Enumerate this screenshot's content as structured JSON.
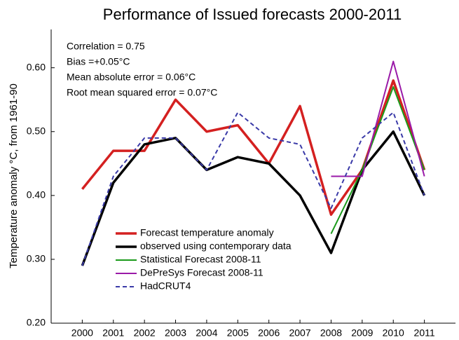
{
  "chart_data": {
    "type": "line",
    "title": "Performance of Issued forecasts 2000-2011",
    "y_label": "Temperature anomaly °C, from 1961-90",
    "annotations": [
      "Correlation = 0.75",
      "Bias =+0.05°C",
      "Mean absolute error = 0.06°C",
      "Root mean squared error = 0.07°C"
    ],
    "x": [
      2000,
      2001,
      2002,
      2003,
      2004,
      2005,
      2006,
      2007,
      2008,
      2009,
      2010,
      2011
    ],
    "xlim": [
      1999,
      2012
    ],
    "xticks": [
      2000,
      2001,
      2002,
      2003,
      2004,
      2005,
      2006,
      2007,
      2008,
      2009,
      2010,
      2011
    ],
    "ylim": [
      0.2,
      0.66
    ],
    "yticks": [
      {
        "value": 0.2,
        "label": "0.20"
      },
      {
        "value": 0.3,
        "label": "0.30"
      },
      {
        "value": 0.4,
        "label": "0.40"
      },
      {
        "value": 0.5,
        "label": "0.50"
      },
      {
        "value": 0.6,
        "label": "0.60"
      }
    ],
    "grid": false,
    "legend": "lower left",
    "series": [
      {
        "name": "Forecast temperature anomaly",
        "color": "#d42020",
        "linewidth": 3.5,
        "dashed": false,
        "values": [
          0.41,
          0.47,
          0.47,
          0.55,
          0.5,
          0.51,
          0.45,
          0.54,
          0.37,
          0.44,
          0.58,
          0.44
        ]
      },
      {
        "name": "observed using contemporary  data",
        "color": "#000000",
        "linewidth": 3.5,
        "dashed": false,
        "values": [
          0.29,
          0.42,
          0.48,
          0.49,
          0.44,
          0.46,
          0.45,
          0.4,
          0.31,
          0.44,
          0.5,
          0.4
        ]
      },
      {
        "name": "Statistical  Forecast 2008-11",
        "color": "#1a9a1a",
        "linewidth": 2,
        "dashed": false,
        "values": [
          null,
          null,
          null,
          null,
          null,
          null,
          null,
          null,
          0.34,
          0.44,
          0.57,
          0.44
        ]
      },
      {
        "name": "DePreSys Forecast 2008-11",
        "color": "#9a1aa8",
        "linewidth": 2,
        "dashed": false,
        "values": [
          null,
          null,
          null,
          null,
          null,
          null,
          null,
          null,
          0.43,
          0.43,
          0.61,
          0.43
        ]
      },
      {
        "name": "HadCRUT4",
        "color": "#3a3aa8",
        "linewidth": 2,
        "dashed": true,
        "values": [
          0.29,
          0.43,
          0.49,
          0.49,
          0.44,
          0.53,
          0.49,
          0.48,
          0.38,
          0.49,
          0.53,
          0.4
        ]
      }
    ]
  }
}
